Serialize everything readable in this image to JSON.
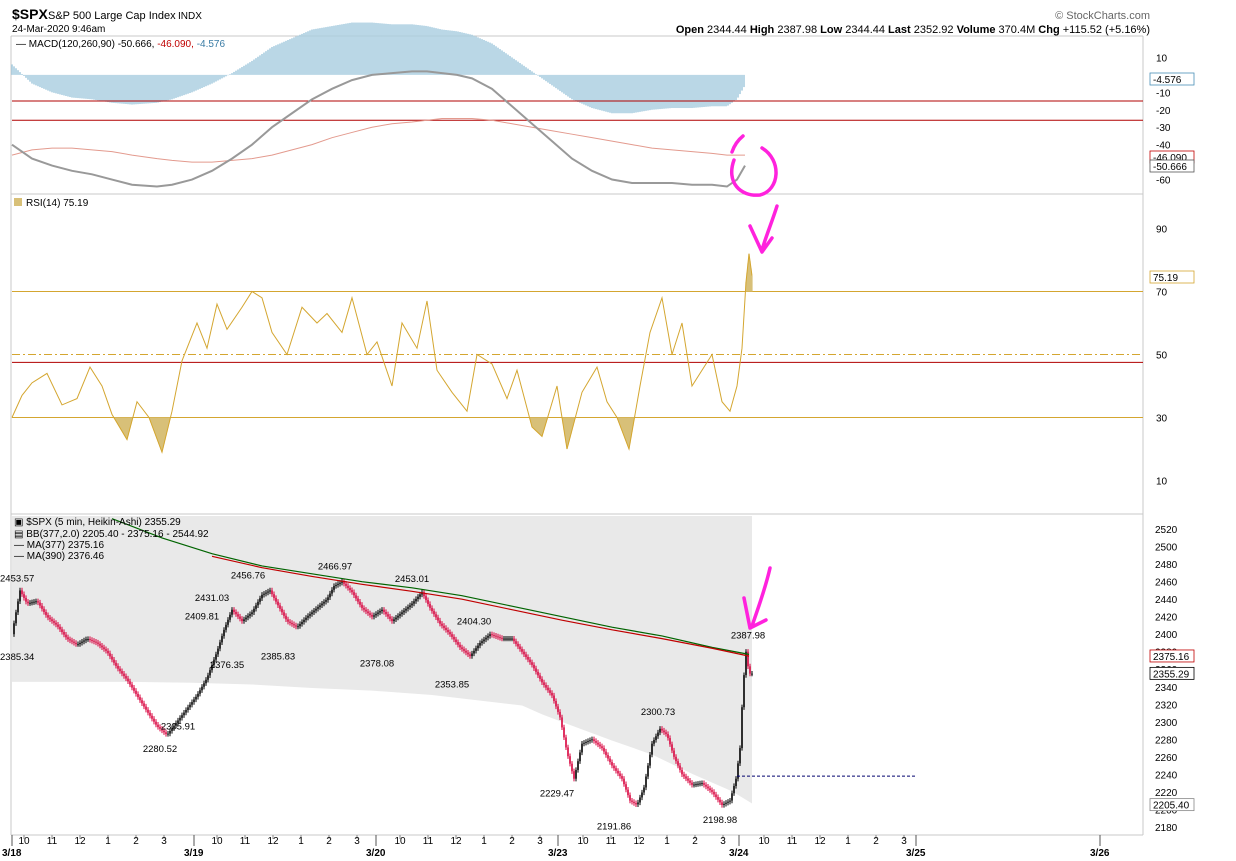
{
  "header": {
    "symbol": "$SPX",
    "name": "S&P 500 Large Cap Index",
    "exchange": "INDX",
    "date": "24-Mar-2020 9:46am",
    "brand": "© StockCharts.com",
    "quote": [
      {
        "label": "Open",
        "value": "2344.44"
      },
      {
        "label": "High",
        "value": "2387.98"
      },
      {
        "label": "Low",
        "value": "2344.44"
      },
      {
        "label": "Last",
        "value": "2352.92"
      },
      {
        "label": "Volume",
        "value": "370.4M"
      },
      {
        "label": "Chg",
        "value": "+115.52 (+5.16%)"
      }
    ]
  },
  "colors": {
    "macd_hist": "#a9cde0",
    "macd_line": "#999999",
    "signal_line": "#e39a8e",
    "hline_red": "#b00000",
    "rsi_line": "#d4a630",
    "rsi_fill": "#d8c078",
    "bull": "#000000",
    "bear": "#d8003c",
    "ma377": "#c00000",
    "ma390": "#006400",
    "bb_fill": "#e9e9e9",
    "annotation": "#ff22dd",
    "dashed": "#00006e"
  },
  "chart_data": [
    {
      "type": "area",
      "panel": "macd",
      "legend": {
        "name": "MACD(120,260,90)",
        "v1": "-50.666",
        "v2": "-46.090",
        "v3": "-4.576"
      },
      "ylim": [
        -66,
        20
      ],
      "yticks": [
        10,
        -10,
        -20,
        -30,
        -40,
        -60
      ],
      "hlines": [
        -15,
        -26
      ],
      "last_labels": [
        "-4.576",
        "-46.090",
        "-50.666"
      ],
      "x": [
        0,
        20,
        40,
        60,
        80,
        100,
        120,
        145,
        160,
        180,
        200,
        220,
        240,
        260,
        280,
        300,
        320,
        340,
        360,
        380,
        400,
        415,
        430,
        445,
        460,
        480,
        500,
        520,
        540,
        560,
        580,
        600,
        620,
        640,
        660,
        680,
        700,
        715,
        725,
        733
      ],
      "macd": [
        -40,
        -48,
        -52,
        -55,
        -57,
        -60,
        -63,
        -64,
        -63,
        -60,
        -55,
        -48,
        -40,
        -30,
        -22,
        -14,
        -8,
        -3,
        0,
        1,
        2,
        2,
        1,
        0,
        -2,
        -8,
        -18,
        -28,
        -38,
        -48,
        -55,
        -60,
        -62,
        -62,
        -62,
        -63,
        -63,
        -64,
        -60,
        -52
      ],
      "signal": [
        -46,
        -43,
        -42,
        -42,
        -43,
        -44,
        -46,
        -48,
        -49,
        -50,
        -50,
        -49,
        -48,
        -46,
        -43,
        -40,
        -36,
        -33,
        -30,
        -28,
        -27,
        -26,
        -25,
        -25,
        -25,
        -26,
        -28,
        -30,
        -32,
        -34,
        -36,
        -38,
        -40,
        -42,
        -43,
        -44,
        -45,
        -46,
        -46,
        -46
      ]
    },
    {
      "type": "line",
      "panel": "rsi",
      "legend": {
        "name": "RSI(14)",
        "value": "75.19"
      },
      "ylim": [
        0,
        100
      ],
      "yticks": [
        90,
        70,
        50,
        30,
        10
      ],
      "hlines": [
        70,
        30
      ],
      "dashdot": 50,
      "redline": 47.5,
      "last_label": "75.19",
      "x": [
        0,
        10,
        20,
        35,
        50,
        65,
        78,
        90,
        100,
        115,
        125,
        137,
        150,
        160,
        170,
        185,
        195,
        205,
        215,
        230,
        240,
        250,
        260,
        275,
        290,
        305,
        315,
        330,
        340,
        355,
        365,
        380,
        390,
        405,
        415,
        425,
        440,
        455,
        465,
        480,
        495,
        505,
        520,
        530,
        545,
        555,
        570,
        585,
        595,
        605,
        617,
        628,
        638,
        650,
        660,
        670,
        680,
        690,
        700,
        710,
        718,
        725,
        730,
        734,
        737,
        740
      ],
      "values": [
        30,
        37,
        41,
        44,
        34,
        36,
        46,
        40,
        31,
        23,
        35,
        30,
        19,
        32,
        48,
        60,
        52,
        66,
        58,
        65,
        70,
        68,
        57,
        50,
        65,
        60,
        63,
        57,
        68,
        50,
        54,
        40,
        60,
        52,
        67,
        45,
        38,
        32,
        50,
        47,
        36,
        45,
        27,
        24,
        40,
        20,
        38,
        46,
        35,
        30,
        20,
        40,
        57,
        68,
        50,
        60,
        40,
        45,
        50,
        35,
        32,
        40,
        52,
        73,
        82,
        75
      ]
    },
    {
      "type": "candlestick",
      "panel": "price",
      "legend": [
        {
          "name": "$SPX (5 min, Heikin-Ashi)",
          "value": "2355.29"
        },
        {
          "name": "BB(377,2.0)",
          "value": "2205.40 - 2375.16 - 2544.92"
        },
        {
          "name": "MA(377)",
          "value": "2375.16"
        },
        {
          "name": "MA(390)",
          "value": "2376.46"
        }
      ],
      "ylim": [
        2173,
        2535
      ],
      "yticks": [
        2520,
        2500,
        2480,
        2460,
        2440,
        2420,
        2400,
        2380,
        2360,
        2340,
        2320,
        2300,
        2280,
        2260,
        2240,
        2220,
        2200,
        2180
      ],
      "last_labels": [
        "2375.16",
        "2355.29",
        "2205.40"
      ],
      "dashed_level": 2238,
      "close_path": {
        "x": [
          0,
          8,
          15,
          25,
          35,
          45,
          55,
          65,
          75,
          85,
          95,
          105,
          115,
          125,
          135,
          145,
          155,
          165,
          175,
          185,
          195,
          205,
          212,
          220,
          230,
          240,
          250,
          258,
          265,
          275,
          285,
          295,
          305,
          315,
          322,
          330,
          340,
          350,
          360,
          370,
          380,
          390,
          400,
          410,
          418,
          428,
          438,
          448,
          458,
          468,
          478,
          490,
          500,
          510,
          520,
          530,
          540,
          548,
          555,
          562,
          570,
          580,
          590,
          600,
          610,
          618,
          625,
          632,
          640,
          648,
          655,
          662,
          670,
          680,
          690,
          700,
          710,
          718,
          724,
          728,
          731,
          734,
          737,
          740
        ],
        "y": [
          2400,
          2450,
          2435,
          2438,
          2420,
          2410,
          2395,
          2388,
          2395,
          2390,
          2380,
          2362,
          2348,
          2330,
          2312,
          2295,
          2285,
          2300,
          2315,
          2330,
          2350,
          2380,
          2405,
          2428,
          2415,
          2425,
          2445,
          2450,
          2435,
          2415,
          2408,
          2420,
          2430,
          2440,
          2455,
          2460,
          2448,
          2430,
          2420,
          2428,
          2415,
          2425,
          2435,
          2448,
          2430,
          2412,
          2400,
          2385,
          2375,
          2390,
          2400,
          2395,
          2395,
          2380,
          2365,
          2345,
          2330,
          2305,
          2265,
          2235,
          2275,
          2280,
          2270,
          2250,
          2235,
          2210,
          2205,
          2225,
          2275,
          2292,
          2285,
          2260,
          2240,
          2228,
          2230,
          2220,
          2205,
          2210,
          2235,
          2270,
          2340,
          2380,
          2355,
          2355
        ]
      },
      "bb_lower": {
        "x": [
          0,
          60,
          120,
          180,
          240,
          300,
          360,
          420,
          480,
          510,
          530,
          560,
          600,
          640,
          680,
          720,
          740
        ],
        "y": [
          2345,
          2345,
          2345,
          2344,
          2342,
          2338,
          2335,
          2330,
          2322,
          2318,
          2308,
          2295,
          2278,
          2262,
          2240,
          2220,
          2206
        ]
      },
      "ma390": {
        "x": [
          100,
          150,
          200,
          250,
          300,
          350,
          400,
          450,
          500,
          550,
          600,
          650,
          700,
          737
        ],
        "y": [
          2532,
          2510,
          2492,
          2478,
          2469,
          2460,
          2453,
          2444,
          2432,
          2420,
          2408,
          2398,
          2385,
          2377
        ]
      },
      "ma377": {
        "x": [
          200,
          250,
          300,
          350,
          400,
          450,
          500,
          550,
          600,
          650,
          700,
          737
        ],
        "y": [
          2489,
          2476,
          2466,
          2457,
          2449,
          2440,
          2428,
          2416,
          2405,
          2395,
          2384,
          2375
        ]
      },
      "annotations": [
        {
          "x": 0,
          "price": 2453.57,
          "label": "2453.57"
        },
        {
          "x": 0,
          "price": 2385.34,
          "label": "2385.34"
        },
        {
          "x": 148,
          "price": 2280.52,
          "label": "2280.52"
        },
        {
          "x": 166,
          "price": 2305.91,
          "label": "2305.91"
        },
        {
          "x": 190,
          "price": 2409.81,
          "label": "2409.81"
        },
        {
          "x": 200,
          "price": 2431.03,
          "label": "2431.03"
        },
        {
          "x": 215,
          "price": 2376.35,
          "label": "2376.35"
        },
        {
          "x": 236,
          "price": 2456.76,
          "label": "2456.76"
        },
        {
          "x": 266,
          "price": 2385.83,
          "label": "2385.83"
        },
        {
          "x": 323,
          "price": 2466.97,
          "label": "2466.97"
        },
        {
          "x": 365,
          "price": 2378.08,
          "label": "2378.08"
        },
        {
          "x": 400,
          "price": 2453.01,
          "label": "2453.01"
        },
        {
          "x": 440,
          "price": 2353.85,
          "label": "2353.85"
        },
        {
          "x": 462,
          "price": 2404.3,
          "label": "2404.30"
        },
        {
          "x": 545,
          "price": 2229.47,
          "label": "2229.47"
        },
        {
          "x": 602,
          "price": 2191.86,
          "label": "2191.86"
        },
        {
          "x": 646,
          "price": 2300.73,
          "label": "2300.73"
        },
        {
          "x": 708,
          "price": 2198.98,
          "label": "2198.98"
        },
        {
          "x": 736,
          "price": 2387.98,
          "label": "2387.98"
        }
      ]
    }
  ],
  "x_axis": {
    "hour_ticks": [
      {
        "x": 12,
        "label": "10"
      },
      {
        "x": 40,
        "label": "11"
      },
      {
        "x": 68,
        "label": "12"
      },
      {
        "x": 96,
        "label": "1"
      },
      {
        "x": 124,
        "label": "2"
      },
      {
        "x": 152,
        "label": "3"
      },
      {
        "x": 205,
        "label": "10"
      },
      {
        "x": 233,
        "label": "11"
      },
      {
        "x": 261,
        "label": "12"
      },
      {
        "x": 289,
        "label": "1"
      },
      {
        "x": 317,
        "label": "2"
      },
      {
        "x": 345,
        "label": "3"
      },
      {
        "x": 388,
        "label": "10"
      },
      {
        "x": 416,
        "label": "11"
      },
      {
        "x": 444,
        "label": "12"
      },
      {
        "x": 472,
        "label": "1"
      },
      {
        "x": 500,
        "label": "2"
      },
      {
        "x": 528,
        "label": "3"
      },
      {
        "x": 571,
        "label": "10"
      },
      {
        "x": 599,
        "label": "11"
      },
      {
        "x": 627,
        "label": "12"
      },
      {
        "x": 655,
        "label": "1"
      },
      {
        "x": 683,
        "label": "2"
      },
      {
        "x": 711,
        "label": "3"
      },
      {
        "x": 752,
        "label": "10"
      },
      {
        "x": 780,
        "label": "11"
      },
      {
        "x": 808,
        "label": "12"
      },
      {
        "x": 836,
        "label": "1"
      },
      {
        "x": 864,
        "label": "2"
      },
      {
        "x": 892,
        "label": "3"
      }
    ],
    "date_ticks": [
      {
        "x": 0,
        "label": "3/18"
      },
      {
        "x": 182,
        "label": "3/19"
      },
      {
        "x": 364,
        "label": "3/20"
      },
      {
        "x": 546,
        "label": "3/23"
      },
      {
        "x": 727,
        "label": "3/24"
      },
      {
        "x": 904,
        "label": "3/25"
      },
      {
        "x": 1088,
        "label": "3/26"
      }
    ]
  }
}
